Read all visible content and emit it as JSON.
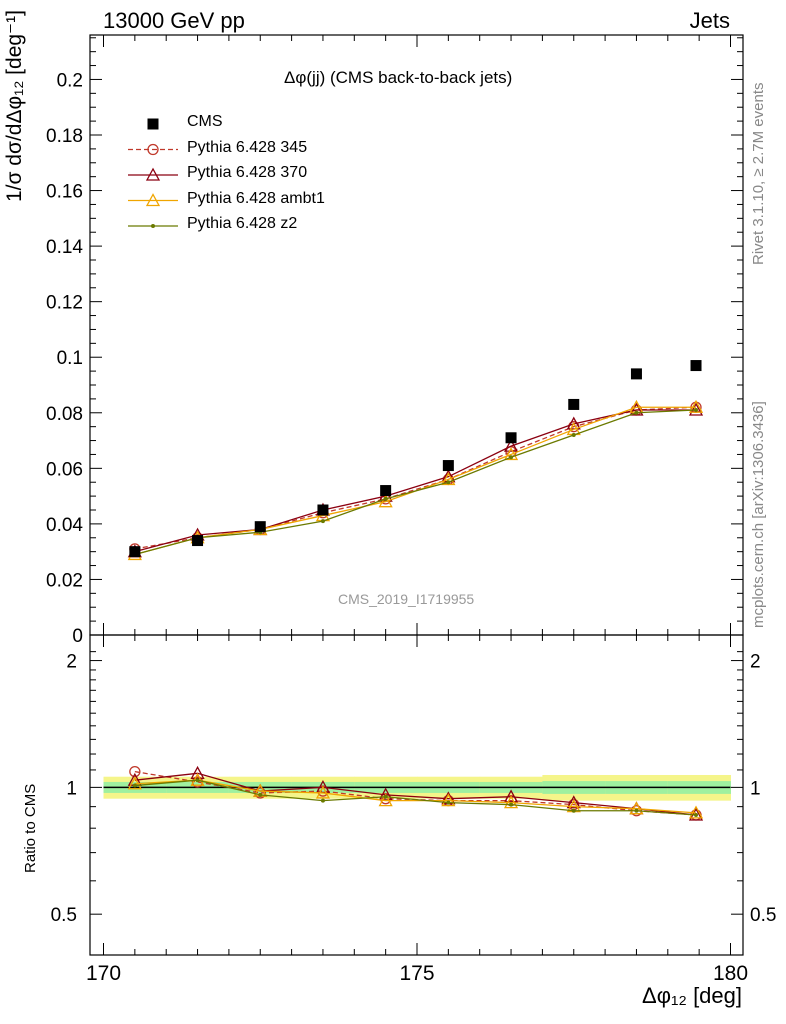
{
  "header": {
    "left": "13000 GeV pp",
    "right": "Jets"
  },
  "title": "Δφ(jj) (CMS back-to-back jets)",
  "side_text": [
    "Rivet 3.1.10, ≥ 2.7M events",
    "mcplots.cern.ch [arXiv:1306.3436]"
  ],
  "watermark": "CMS_2019_I1719955",
  "ratio_ylabel": "Ratio to CMS",
  "xlabel": "Δφ₁₂ [deg]",
  "ylabel": "1/σ dσ/dΔφ₁₂ [deg⁻¹]",
  "chart_data": [
    {
      "type": "scatter",
      "panel": "main",
      "x": [
        170.5,
        171.5,
        172.5,
        173.5,
        174.5,
        175.5,
        176.5,
        177.5,
        178.5,
        179.45
      ],
      "xlim": [
        170,
        180
      ],
      "ylim": [
        0,
        0.216
      ],
      "xticks": [
        170,
        175,
        180
      ],
      "yticks": [
        0,
        0.02,
        0.04,
        0.06,
        0.08,
        0.1,
        0.12,
        0.14,
        0.16,
        0.18,
        0.2
      ],
      "legend_position": "top-left",
      "series": [
        {
          "name": "CMS",
          "color": "#000000",
          "marker": "square",
          "line": "none",
          "values": [
            0.03,
            0.034,
            0.039,
            0.045,
            0.052,
            0.061,
            0.071,
            0.083,
            0.094,
            0.097
          ]
        },
        {
          "name": "Pythia 6.428 345",
          "color": "#c0392b",
          "marker": "open-circle",
          "line": "dashed",
          "values": [
            0.031,
            0.035,
            0.038,
            0.044,
            0.049,
            0.056,
            0.066,
            0.075,
            0.081,
            0.082
          ]
        },
        {
          "name": "Pythia 6.428 370",
          "color": "#8b0010",
          "marker": "open-triangle",
          "line": "solid",
          "values": [
            0.03,
            0.036,
            0.038,
            0.045,
            0.05,
            0.057,
            0.068,
            0.076,
            0.081,
            0.081
          ]
        },
        {
          "name": "Pythia 6.428 ambt1",
          "color": "#f0a500",
          "marker": "open-triangle",
          "line": "solid",
          "values": [
            0.029,
            0.035,
            0.038,
            0.043,
            0.048,
            0.056,
            0.065,
            0.074,
            0.082,
            0.082
          ]
        },
        {
          "name": "Pythia 6.428 z2",
          "color": "#6b7a00",
          "marker": "dot",
          "line": "solid",
          "values": [
            0.029,
            0.035,
            0.037,
            0.041,
            0.049,
            0.055,
            0.064,
            0.072,
            0.08,
            0.081
          ]
        }
      ]
    },
    {
      "type": "line",
      "panel": "ratio",
      "x": [
        170.5,
        171.5,
        172.5,
        173.5,
        174.5,
        175.5,
        176.5,
        177.5,
        178.5,
        179.45
      ],
      "xlim": [
        170,
        180
      ],
      "ylim": [
        0.4,
        2.3
      ],
      "y_scale": "log",
      "yticks": [
        0.5,
        1,
        2
      ],
      "band_outer": [
        0.06,
        0.06,
        0.06,
        0.06,
        0.06,
        0.06,
        0.06,
        0.07,
        0.07,
        0.07
      ],
      "band_inner": [
        0.03,
        0.03,
        0.03,
        0.03,
        0.03,
        0.03,
        0.03,
        0.035,
        0.035,
        0.035
      ],
      "series": [
        {
          "name": "Pythia 6.428 345",
          "values": [
            1.09,
            1.03,
            0.97,
            0.98,
            0.94,
            0.93,
            0.93,
            0.91,
            0.88,
            0.86
          ]
        },
        {
          "name": "Pythia 6.428 370",
          "values": [
            1.04,
            1.08,
            0.98,
            1.0,
            0.96,
            0.94,
            0.95,
            0.92,
            0.89,
            0.86
          ]
        },
        {
          "name": "Pythia 6.428 ambt1",
          "values": [
            1.02,
            1.04,
            0.98,
            0.97,
            0.93,
            0.93,
            0.92,
            0.9,
            0.89,
            0.87
          ]
        },
        {
          "name": "Pythia 6.428 z2",
          "values": [
            1.01,
            1.04,
            0.96,
            0.93,
            0.95,
            0.92,
            0.91,
            0.88,
            0.88,
            0.86
          ]
        }
      ]
    }
  ]
}
